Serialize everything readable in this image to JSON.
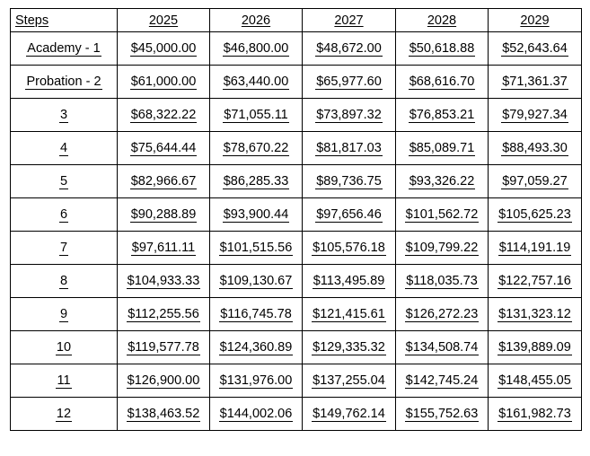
{
  "table": {
    "headers": [
      "Steps",
      "2025",
      "2026",
      "2027",
      "2028",
      "2029"
    ],
    "rows": [
      {
        "step": "Academy - 1",
        "values": [
          "$45,000.00",
          "$46,800.00",
          "$48,672.00",
          "$50,618.88",
          "$52,643.64"
        ]
      },
      {
        "step": "Probation - 2",
        "values": [
          "$61,000.00",
          "$63,440.00",
          "$65,977.60",
          "$68,616.70",
          "$71,361.37"
        ]
      },
      {
        "step": "3",
        "values": [
          "$68,322.22",
          "$71,055.11",
          "$73,897.32",
          "$76,853.21",
          "$79,927.34"
        ]
      },
      {
        "step": "4",
        "values": [
          "$75,644.44",
          "$78,670.22",
          "$81,817.03",
          "$85,089.71",
          "$88,493.30"
        ]
      },
      {
        "step": "5",
        "values": [
          "$82,966.67",
          "$86,285.33",
          "$89,736.75",
          "$93,326.22",
          "$97,059.27"
        ]
      },
      {
        "step": "6",
        "values": [
          "$90,288.89",
          "$93,900.44",
          "$97,656.46",
          "$101,562.72",
          "$105,625.23"
        ]
      },
      {
        "step": "7",
        "values": [
          "$97,611.11",
          "$101,515.56",
          "$105,576.18",
          "$109,799.22",
          "$114,191.19"
        ]
      },
      {
        "step": "8",
        "values": [
          "$104,933.33",
          "$109,130.67",
          "$113,495.89",
          "$118,035.73",
          "$122,757.16"
        ]
      },
      {
        "step": "9",
        "values": [
          "$112,255.56",
          "$116,745.78",
          "$121,415.61",
          "$126,272.23",
          "$131,323.12"
        ]
      },
      {
        "step": "10",
        "values": [
          "$119,577.78",
          "$124,360.89",
          "$129,335.32",
          "$134,508.74",
          "$139,889.09"
        ]
      },
      {
        "step": "11",
        "values": [
          "$126,900.00",
          "$131,976.00",
          "$137,255.04",
          "$142,745.24",
          "$148,455.05"
        ]
      },
      {
        "step": "12",
        "values": [
          "$138,463.52",
          "$144,002.06",
          "$149,762.14",
          "$155,752.63",
          "$161,982.73"
        ]
      }
    ]
  }
}
